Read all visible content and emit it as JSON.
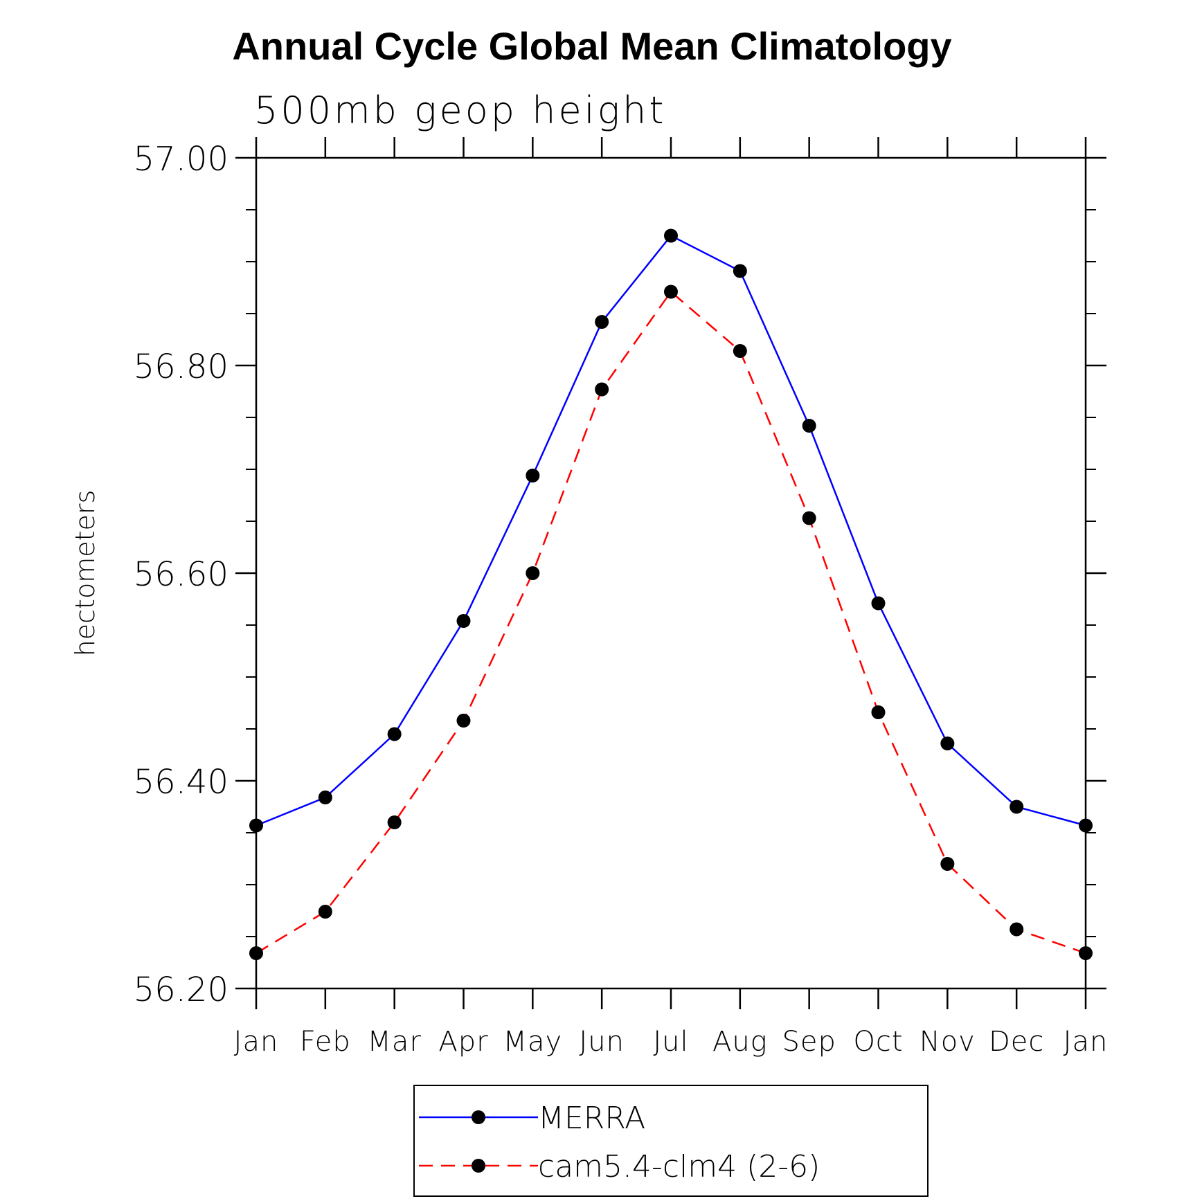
{
  "chart_data": {
    "type": "line",
    "title": "Annual Cycle Global Mean Climatology",
    "subtitle": "500mb geop height",
    "ylabel": "hectometers",
    "xlabel": "",
    "categories": [
      "Jan",
      "Feb",
      "Mar",
      "Apr",
      "May",
      "Jun",
      "Jul",
      "Aug",
      "Sep",
      "Oct",
      "Nov",
      "Dec",
      "Jan"
    ],
    "ylim": [
      56.2,
      57.0
    ],
    "yticks": [
      56.2,
      56.4,
      56.6,
      56.8,
      57.0
    ],
    "ytick_labels": [
      "56.20",
      "56.40",
      "56.60",
      "56.80",
      "57.00"
    ],
    "minor_ytick_step": 0.05,
    "grid": false,
    "legend_position": "bottom-center",
    "series": [
      {
        "name": "MERRA",
        "color": "#0000ff",
        "line_style": "solid",
        "marker": "filled-circle",
        "values": [
          56.357,
          56.384,
          56.445,
          56.554,
          56.694,
          56.842,
          56.925,
          56.891,
          56.742,
          56.571,
          56.436,
          56.375,
          56.357
        ]
      },
      {
        "name": "cam5.4-clm4 (2-6)",
        "color": "#ff0000",
        "line_style": "dashed",
        "marker": "filled-circle",
        "values": [
          56.234,
          56.274,
          56.36,
          56.458,
          56.6,
          56.777,
          56.871,
          56.814,
          56.653,
          56.466,
          56.32,
          56.257,
          56.234
        ]
      }
    ]
  }
}
